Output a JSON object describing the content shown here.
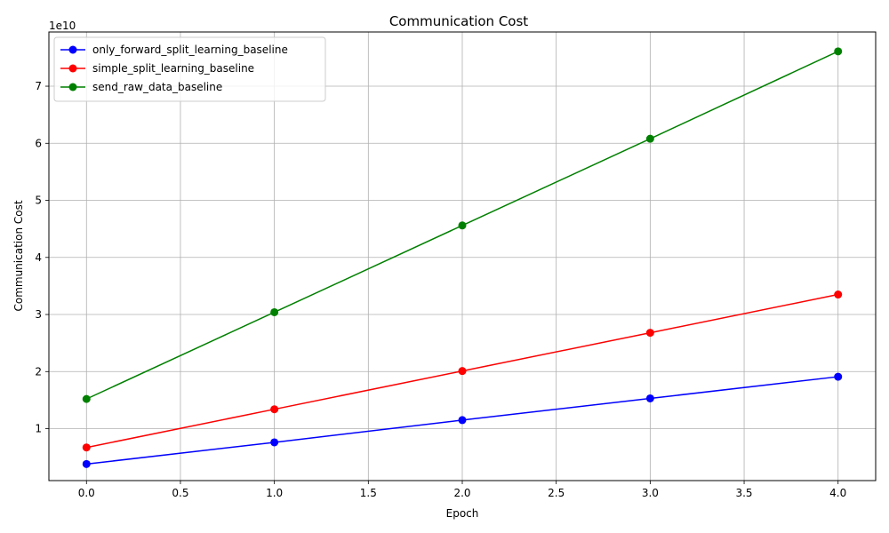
{
  "chart_data": {
    "type": "line",
    "title": "Communication Cost",
    "xlabel": "Epoch",
    "ylabel": "Communication Cost",
    "y_scale_label": "1e10",
    "x": [
      0,
      1,
      2,
      3,
      4
    ],
    "xlim": [
      -0.2,
      4.2
    ],
    "ylim": [
      0.09,
      7.95
    ],
    "x_ticks": [
      0.0,
      0.5,
      1.0,
      1.5,
      2.0,
      2.5,
      3.0,
      3.5,
      4.0
    ],
    "x_tick_labels": [
      "0.0",
      "0.5",
      "1.0",
      "1.5",
      "2.0",
      "2.5",
      "3.0",
      "3.5",
      "4.0"
    ],
    "y_ticks": [
      1,
      2,
      3,
      4,
      5,
      6,
      7
    ],
    "y_tick_labels": [
      "1",
      "2",
      "3",
      "4",
      "5",
      "6",
      "7"
    ],
    "grid": true,
    "legend_position": "top-left",
    "series": [
      {
        "name": "only_forward_split_learning_baseline",
        "color": "#0000ff",
        "values": [
          0.38,
          0.76,
          1.15,
          1.53,
          1.91
        ]
      },
      {
        "name": "simple_split_learning_baseline",
        "color": "#ff0000",
        "values": [
          0.67,
          1.34,
          2.01,
          2.68,
          3.35
        ]
      },
      {
        "name": "send_raw_data_baseline",
        "color": "#008000",
        "values": [
          1.52,
          3.04,
          4.56,
          6.08,
          7.61
        ]
      }
    ]
  }
}
